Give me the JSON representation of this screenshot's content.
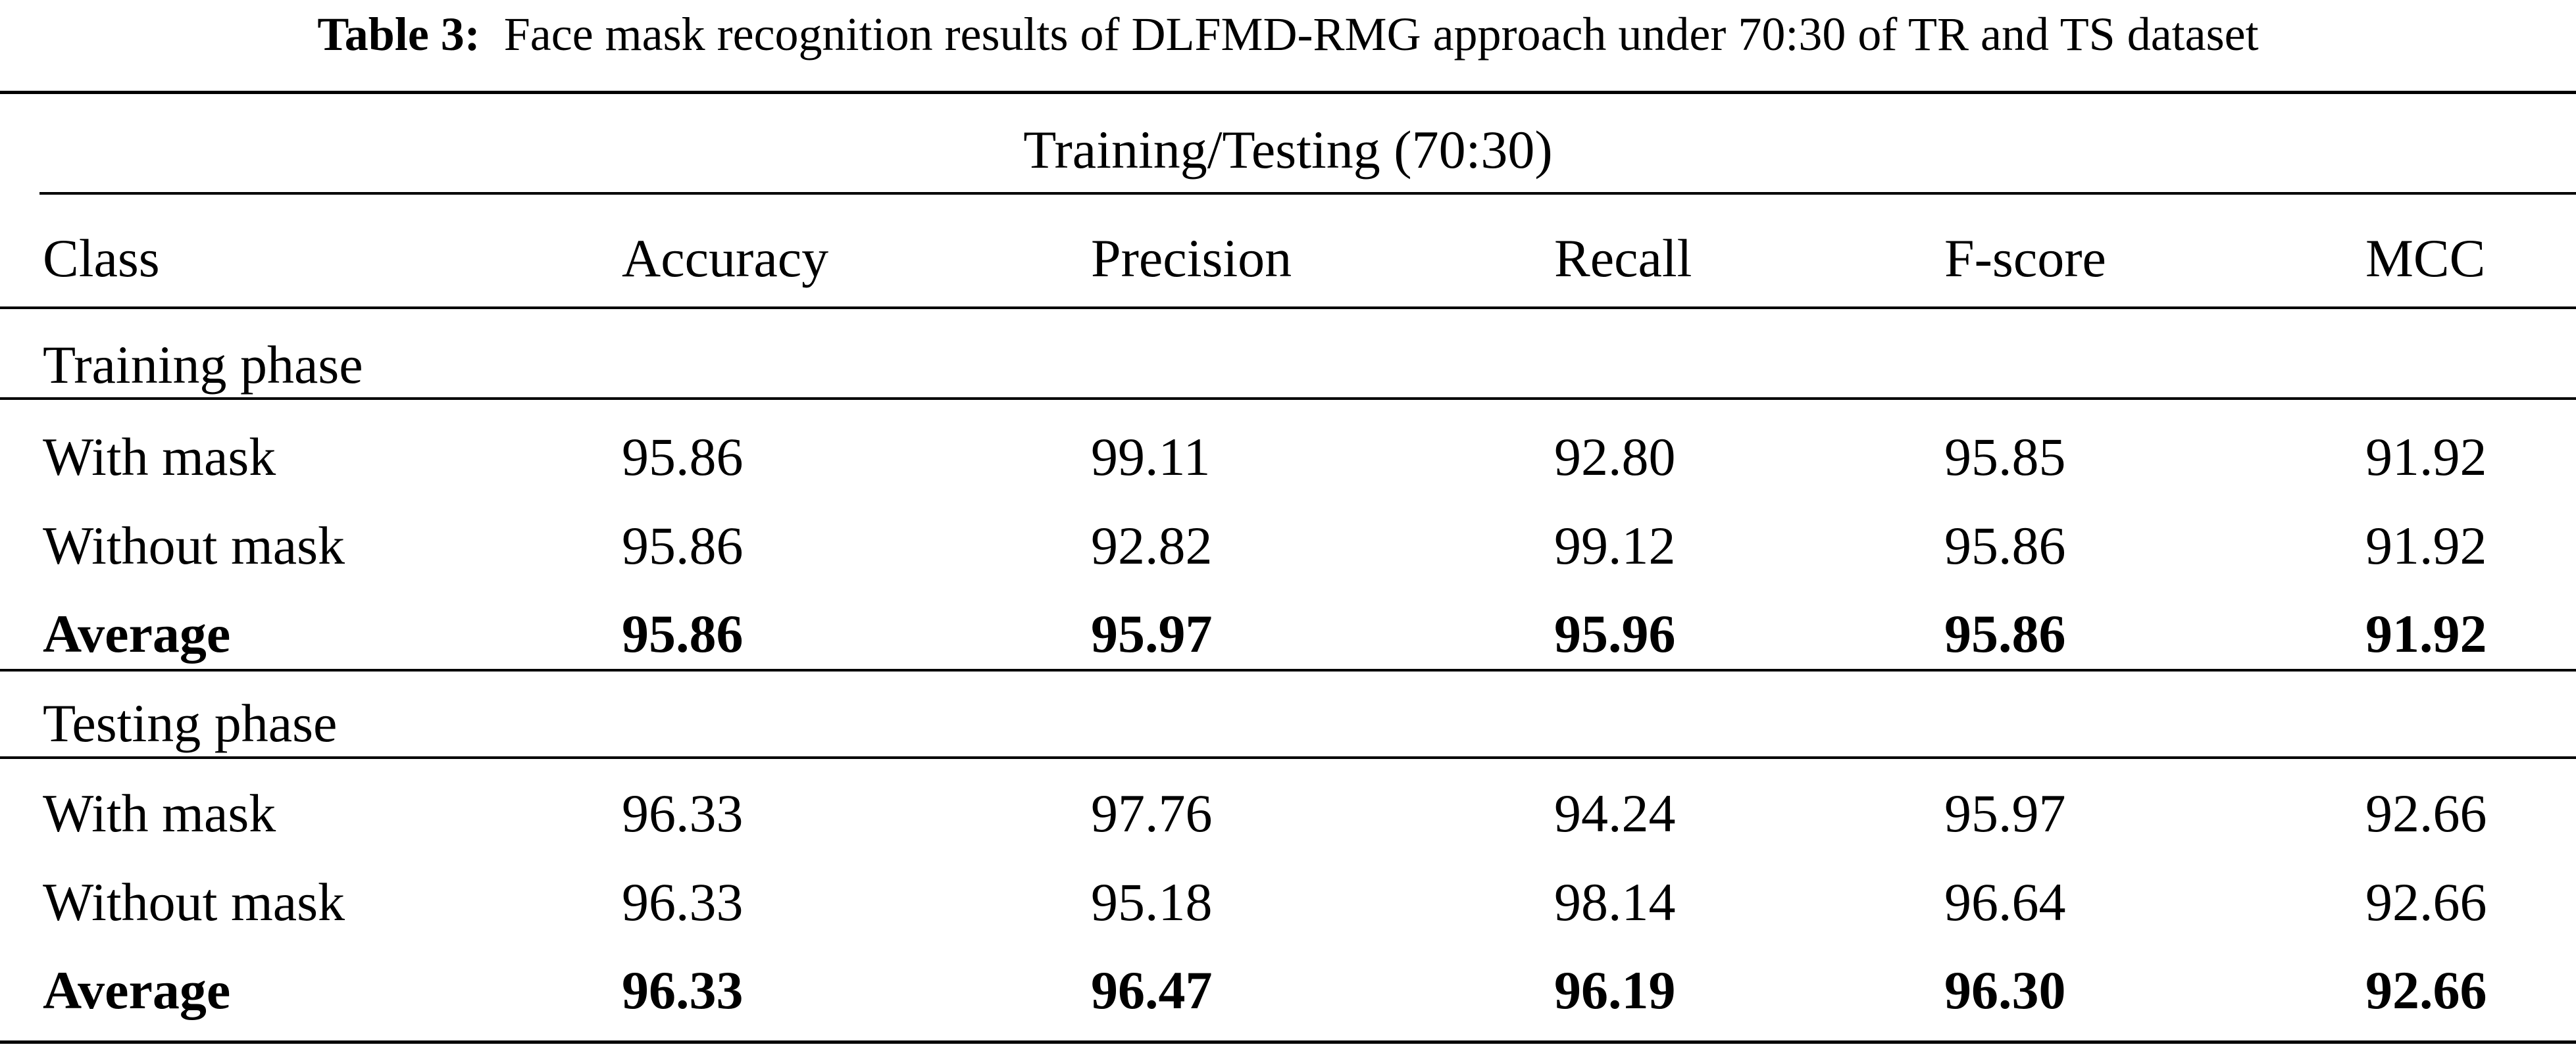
{
  "caption": {
    "label": "Table 3:",
    "text": "Face mask recognition results of DLFMD-RMG approach under 70:30 of TR and TS dataset"
  },
  "table": {
    "group_header": "Training/Testing (70:30)",
    "columns": [
      "Class",
      "Accuracy",
      "Precision",
      "Recall",
      "F-score",
      "MCC"
    ],
    "sections": [
      {
        "title": "Training phase",
        "rows": [
          {
            "cells": [
              "With mask",
              "95.86",
              "99.11",
              "92.80",
              "95.85",
              "91.92"
            ],
            "bold": false
          },
          {
            "cells": [
              "Without mask",
              "95.86",
              "92.82",
              "99.12",
              "95.86",
              "91.92"
            ],
            "bold": false
          },
          {
            "cells": [
              "Average",
              "95.86",
              "95.97",
              "95.96",
              "95.86",
              "91.92"
            ],
            "bold": true
          }
        ]
      },
      {
        "title": "Testing phase",
        "rows": [
          {
            "cells": [
              "With mask",
              "96.33",
              "97.76",
              "94.24",
              "95.97",
              "92.66"
            ],
            "bold": false
          },
          {
            "cells": [
              "Without mask",
              "96.33",
              "95.18",
              "98.14",
              "96.64",
              "92.66"
            ],
            "bold": false
          },
          {
            "cells": [
              "Average",
              "96.33",
              "96.47",
              "96.19",
              "96.30",
              "92.66"
            ],
            "bold": true
          }
        ]
      }
    ]
  }
}
